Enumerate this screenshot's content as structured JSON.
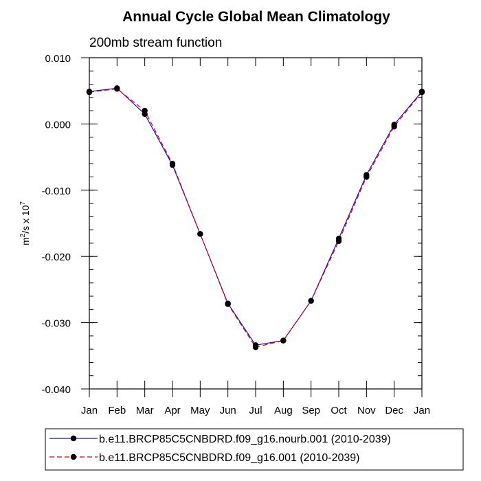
{
  "chart_data": {
    "type": "line",
    "title": "Annual Cycle Global Mean Climatology",
    "subtitle": "200mb stream function",
    "ylabel": {
      "base": "m",
      "base_sup": "2",
      "mid": "/s x 10",
      "mid_sup": "7"
    },
    "ylim": [
      -0.04,
      0.01
    ],
    "y_ticks": [
      0.01,
      0.0,
      -0.01,
      -0.02,
      -0.03,
      -0.04
    ],
    "y_tick_labels": [
      "0.010",
      "0.000",
      "-0.010",
      "-0.020",
      "-0.030",
      "-0.040"
    ],
    "categories": [
      "Jan",
      "Feb",
      "Mar",
      "Apr",
      "May",
      "Jun",
      "Jul",
      "Aug",
      "Sep",
      "Oct",
      "Nov",
      "Dec",
      "Jan"
    ],
    "grid": false,
    "legend_position": "bottom",
    "series": [
      {
        "name": "b.e11.BRCP85C5CNBDRD.f09_g16.nourb.001 (2010-2039)",
        "color": "#1010c0",
        "dash": "solid",
        "values": [
          0.0049,
          0.0054,
          0.0015,
          -0.0062,
          -0.0166,
          -0.0271,
          -0.0334,
          -0.0327,
          -0.0267,
          -0.0173,
          -0.0077,
          -0.0001,
          0.0049
        ]
      },
      {
        "name": "b.e11.BRCP85C5CNBDRD.f09_g16.001 (2010-2039)",
        "color": "#e00000",
        "dash": "dashed",
        "values": [
          0.0048,
          0.0053,
          0.002,
          -0.006,
          -0.0166,
          -0.0272,
          -0.0337,
          -0.0327,
          -0.0267,
          -0.0177,
          -0.008,
          -0.0004,
          0.0048
        ]
      }
    ]
  }
}
